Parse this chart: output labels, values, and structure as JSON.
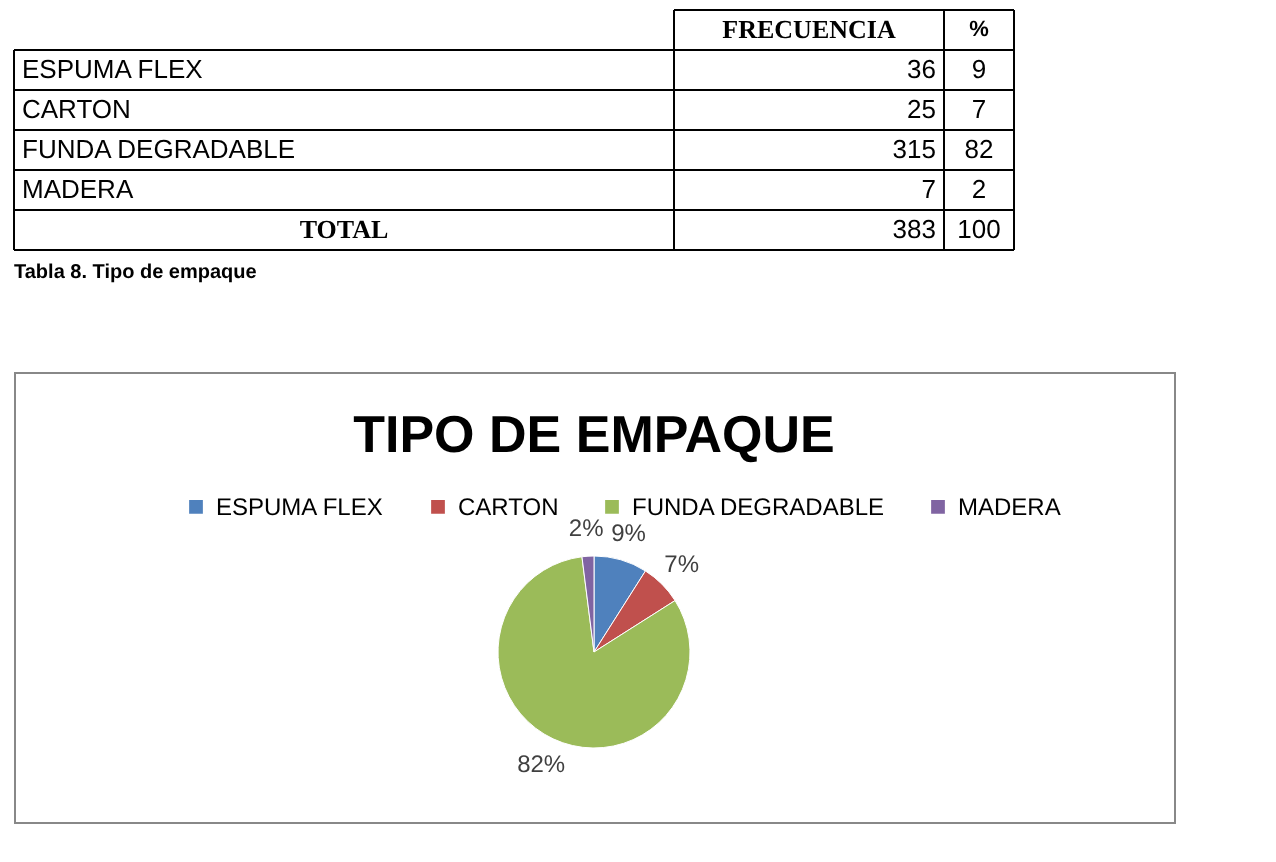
{
  "chart_data": [
    {
      "type": "other",
      "categories": [
        "ESPUMA FLEX",
        "CARTON",
        "FUNDA DEGRADABLE",
        "MADERA"
      ],
      "series": [
        {
          "name": "FRECUENCIA",
          "values": [
            36,
            25,
            315,
            7
          ]
        },
        {
          "name": "%",
          "values": [
            9,
            7,
            82,
            2
          ]
        }
      ],
      "data_labels": true,
      "totals": [
        "383",
        "100"
      ],
      "annotations": [
        "TOTAL",
        "Tabla 8. Tipo de empaque"
      ]
    },
    {
      "type": "pie",
      "title": "TIPO DE EMPAQUE",
      "categories": [
        "ESPUMA FLEX",
        "CARTON",
        "FUNDA DEGRADABLE",
        "MADERA"
      ],
      "values": [
        9,
        7,
        82,
        2
      ],
      "colors": [
        "#4f81bd",
        "#c0504d",
        "#9bbb59",
        "#8064a2"
      ],
      "value_labels": [
        "9%",
        "7%",
        "82%",
        "2%"
      ],
      "legend": "top"
    }
  ]
}
